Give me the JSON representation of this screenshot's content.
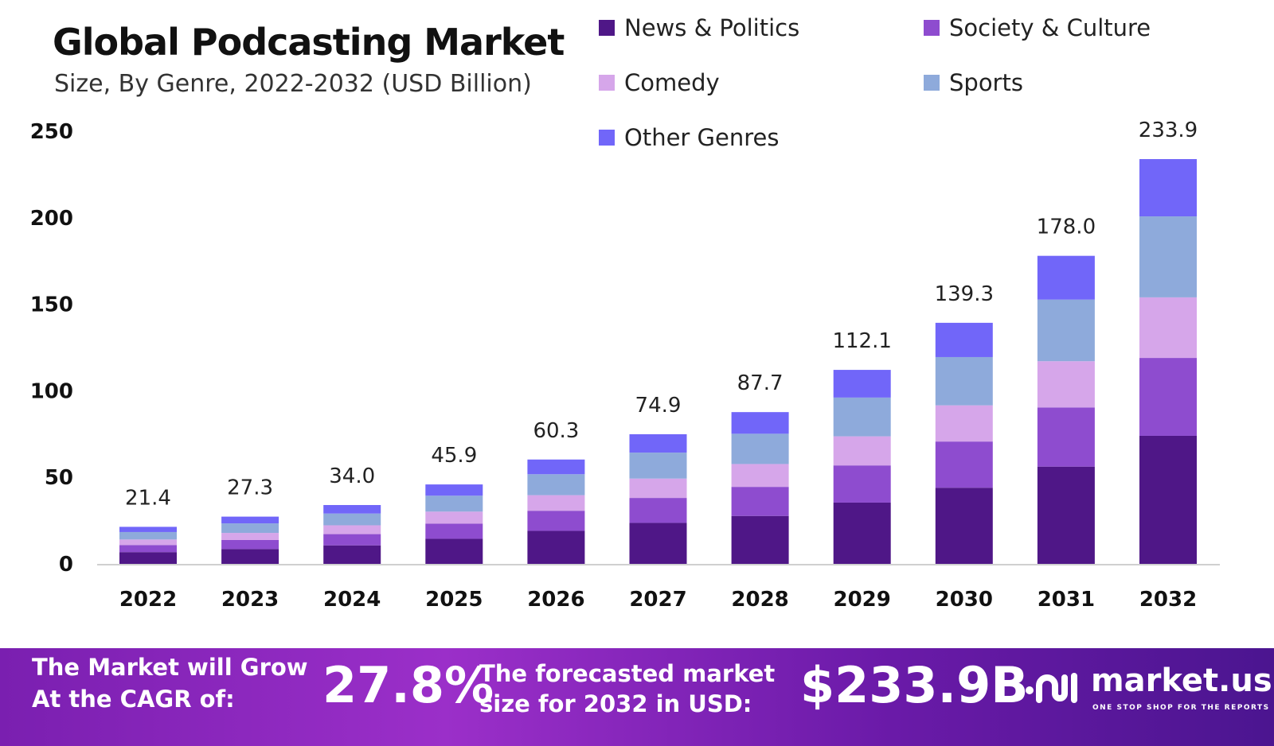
{
  "chart_data": {
    "type": "bar",
    "stacked": true,
    "title": "Global Podcasting Market",
    "subtitle": "Size, By Genre, 2022-2032 (USD Billion)",
    "xlabel": "",
    "ylabel": "",
    "ylim": [
      0,
      250
    ],
    "yticks": [
      0,
      50,
      100,
      150,
      200,
      250
    ],
    "grid": false,
    "legend_position": "top-right",
    "categories": [
      "2022",
      "2023",
      "2024",
      "2025",
      "2026",
      "2027",
      "2028",
      "2029",
      "2030",
      "2031",
      "2032"
    ],
    "totals": [
      "21.4",
      "27.3",
      "34.0",
      "45.9",
      "60.3",
      "74.9",
      "87.7",
      "112.1",
      "139.3",
      "178.0",
      "233.9"
    ],
    "series": [
      {
        "name": "News & Politics",
        "color": "#4f1787",
        "values": [
          6.8,
          8.6,
          10.7,
          14.5,
          19.1,
          23.7,
          27.7,
          35.4,
          44.0,
          56.2,
          74.0
        ]
      },
      {
        "name": "Society & Culture",
        "color": "#8e4ccf",
        "values": [
          4.1,
          5.2,
          6.5,
          8.8,
          11.6,
          14.4,
          16.8,
          21.5,
          26.7,
          34.2,
          45.0
        ]
      },
      {
        "name": "Comedy",
        "color": "#d6a6ea",
        "values": [
          3.2,
          4.1,
          5.1,
          6.9,
          9.0,
          11.2,
          13.2,
          16.8,
          20.9,
          26.7,
          35.0
        ]
      },
      {
        "name": "Sports",
        "color": "#8eaadb",
        "values": [
          4.3,
          5.5,
          6.8,
          9.2,
          12.1,
          15.0,
          17.5,
          22.4,
          27.9,
          35.6,
          46.8
        ]
      },
      {
        "name": "Other Genres",
        "color": "#7166f9",
        "values": [
          3.0,
          3.9,
          4.9,
          6.5,
          8.5,
          10.6,
          12.5,
          16.0,
          19.8,
          25.3,
          33.1
        ]
      }
    ]
  },
  "banner": {
    "cagr_label_line1": "The Market will Grow",
    "cagr_label_line2": "At the CAGR of:",
    "cagr_value": "27.8%",
    "forecast_label_line1": "The forecasted market",
    "forecast_label_line2": "size for 2032 in USD:",
    "forecast_value": "$233.9B",
    "logo_text": "market.us",
    "logo_tagline": "ONE STOP SHOP FOR THE REPORTS"
  }
}
